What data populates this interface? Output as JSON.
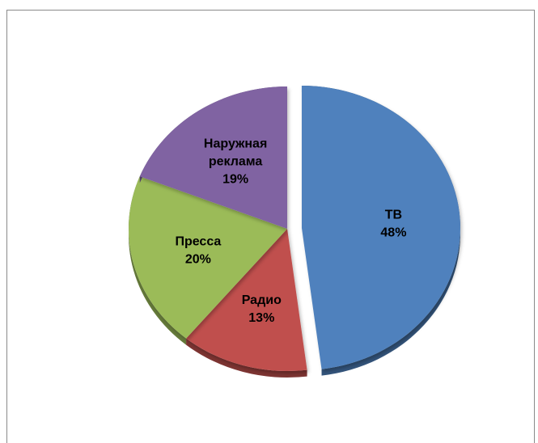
{
  "chart_data": {
    "type": "pie",
    "title": "",
    "style": "3d-tilted, exploded slice",
    "legend": "none",
    "categories": [
      "ТВ",
      "Радио",
      "Пресса",
      "Наружная реклама"
    ],
    "label_lines": [
      [
        "ТВ"
      ],
      [
        "Радио"
      ],
      [
        "Пресса"
      ],
      [
        "Наружная",
        "реклама"
      ]
    ],
    "values": [
      48,
      13,
      20,
      19
    ],
    "value_labels": [
      "48%",
      "13%",
      "20%",
      "19%"
    ],
    "colors": [
      "#4f81bd",
      "#c0504d",
      "#9bbb59",
      "#8064a2"
    ],
    "exploded": [
      "ТВ"
    ]
  }
}
